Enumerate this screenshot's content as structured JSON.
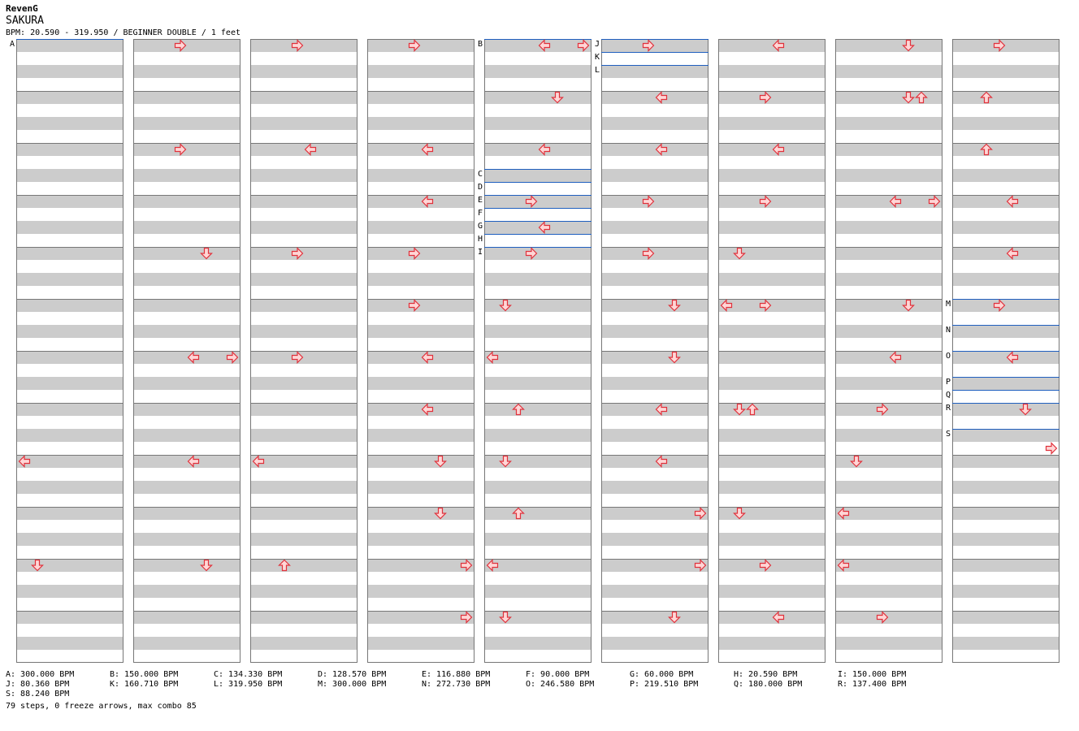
{
  "header": {
    "artist": "RevenG",
    "song": "SAKURA",
    "info": "BPM: 20.590 - 319.950 / BEGINNER DOUBLE / 1 feet"
  },
  "colors": {
    "stripe": "#cccccc",
    "bpm_line": "#1f5fbf",
    "arrow_fill": "#ffd6d6",
    "arrow_stroke": "#e0323c",
    "border": "#777777"
  },
  "chart_data": {
    "columns": 9,
    "measures_per_column": 12,
    "bpm_markers": [
      {
        "label": "A",
        "column": 0,
        "beat": 0
      },
      {
        "label": "B",
        "column": 4,
        "beat": 0
      },
      {
        "label": "C",
        "column": 4,
        "beat": 10
      },
      {
        "label": "D",
        "column": 4,
        "beat": 11
      },
      {
        "label": "E",
        "column": 4,
        "beat": 12
      },
      {
        "label": "F",
        "column": 4,
        "beat": 13
      },
      {
        "label": "G",
        "column": 4,
        "beat": 14
      },
      {
        "label": "H",
        "column": 4,
        "beat": 15
      },
      {
        "label": "I",
        "column": 4,
        "beat": 16
      },
      {
        "label": "J",
        "column": 5,
        "beat": 0
      },
      {
        "label": "K",
        "column": 5,
        "beat": 1
      },
      {
        "label": "L",
        "column": 5,
        "beat": 2
      },
      {
        "label": "M",
        "column": 8,
        "beat": 20
      },
      {
        "label": "N",
        "column": 8,
        "beat": 22
      },
      {
        "label": "O",
        "column": 8,
        "beat": 24
      },
      {
        "label": "P",
        "column": 8,
        "beat": 26
      },
      {
        "label": "Q",
        "column": 8,
        "beat": 27
      },
      {
        "label": "R",
        "column": 8,
        "beat": 28
      },
      {
        "label": "S",
        "column": 8,
        "beat": 30
      }
    ],
    "notes": [
      {
        "c": 0,
        "b": 32,
        "l": 0
      },
      {
        "c": 0,
        "b": 40,
        "l": 1
      },
      {
        "c": 1,
        "b": 0,
        "l": 3
      },
      {
        "c": 1,
        "b": 8,
        "l": 3
      },
      {
        "c": 1,
        "b": 16,
        "l": 5
      },
      {
        "c": 1,
        "b": 24,
        "l": 4
      },
      {
        "c": 1,
        "b": 24,
        "l": 7
      },
      {
        "c": 1,
        "b": 32,
        "l": 4
      },
      {
        "c": 1,
        "b": 40,
        "l": 5
      },
      {
        "c": 2,
        "b": 0,
        "l": 3
      },
      {
        "c": 2,
        "b": 8,
        "l": 4
      },
      {
        "c": 2,
        "b": 16,
        "l": 3
      },
      {
        "c": 2,
        "b": 24,
        "l": 3
      },
      {
        "c": 2,
        "b": 32,
        "l": 0
      },
      {
        "c": 2,
        "b": 40,
        "l": 2
      },
      {
        "c": 3,
        "b": 0,
        "l": 3
      },
      {
        "c": 3,
        "b": 8,
        "l": 4
      },
      {
        "c": 3,
        "b": 12,
        "l": 4
      },
      {
        "c": 3,
        "b": 16,
        "l": 3
      },
      {
        "c": 3,
        "b": 20,
        "l": 3
      },
      {
        "c": 3,
        "b": 24,
        "l": 4
      },
      {
        "c": 3,
        "b": 28,
        "l": 4
      },
      {
        "c": 3,
        "b": 32,
        "l": 5
      },
      {
        "c": 3,
        "b": 36,
        "l": 5
      },
      {
        "c": 3,
        "b": 40,
        "l": 7
      },
      {
        "c": 3,
        "b": 44,
        "l": 7
      },
      {
        "c": 4,
        "b": 0,
        "l": 4
      },
      {
        "c": 4,
        "b": 0,
        "l": 7
      },
      {
        "c": 4,
        "b": 4,
        "l": 5
      },
      {
        "c": 4,
        "b": 8,
        "l": 4
      },
      {
        "c": 4,
        "b": 12,
        "l": 3
      },
      {
        "c": 4,
        "b": 14,
        "l": 4
      },
      {
        "c": 4,
        "b": 16,
        "l": 3
      },
      {
        "c": 4,
        "b": 20,
        "l": 1
      },
      {
        "c": 4,
        "b": 24,
        "l": 0
      },
      {
        "c": 4,
        "b": 28,
        "l": 2
      },
      {
        "c": 4,
        "b": 32,
        "l": 1
      },
      {
        "c": 4,
        "b": 36,
        "l": 2
      },
      {
        "c": 4,
        "b": 40,
        "l": 0
      },
      {
        "c": 4,
        "b": 44,
        "l": 1
      },
      {
        "c": 5,
        "b": 0,
        "l": 3
      },
      {
        "c": 5,
        "b": 4,
        "l": 4
      },
      {
        "c": 5,
        "b": 8,
        "l": 4
      },
      {
        "c": 5,
        "b": 12,
        "l": 3
      },
      {
        "c": 5,
        "b": 16,
        "l": 3
      },
      {
        "c": 5,
        "b": 20,
        "l": 5
      },
      {
        "c": 5,
        "b": 24,
        "l": 5
      },
      {
        "c": 5,
        "b": 28,
        "l": 4
      },
      {
        "c": 5,
        "b": 32,
        "l": 4
      },
      {
        "c": 5,
        "b": 36,
        "l": 7
      },
      {
        "c": 5,
        "b": 40,
        "l": 7
      },
      {
        "c": 5,
        "b": 44,
        "l": 5
      },
      {
        "c": 6,
        "b": 0,
        "l": 4
      },
      {
        "c": 6,
        "b": 4,
        "l": 3
      },
      {
        "c": 6,
        "b": 8,
        "l": 4
      },
      {
        "c": 6,
        "b": 12,
        "l": 3
      },
      {
        "c": 6,
        "b": 16,
        "l": 1
      },
      {
        "c": 6,
        "b": 20,
        "l": 0
      },
      {
        "c": 6,
        "b": 20,
        "l": 3
      },
      {
        "c": 6,
        "b": 28,
        "l": 1
      },
      {
        "c": 6,
        "b": 28,
        "l": 2
      },
      {
        "c": 6,
        "b": 36,
        "l": 1
      },
      {
        "c": 6,
        "b": 40,
        "l": 3
      },
      {
        "c": 6,
        "b": 44,
        "l": 4
      },
      {
        "c": 7,
        "b": 0,
        "l": 5
      },
      {
        "c": 7,
        "b": 4,
        "l": 5
      },
      {
        "c": 7,
        "b": 4,
        "l": 6
      },
      {
        "c": 7,
        "b": 12,
        "l": 4
      },
      {
        "c": 7,
        "b": 12,
        "l": 7
      },
      {
        "c": 7,
        "b": 20,
        "l": 5
      },
      {
        "c": 7,
        "b": 24,
        "l": 4
      },
      {
        "c": 7,
        "b": 28,
        "l": 3
      },
      {
        "c": 7,
        "b": 32,
        "l": 1
      },
      {
        "c": 7,
        "b": 36,
        "l": 0
      },
      {
        "c": 7,
        "b": 40,
        "l": 0
      },
      {
        "c": 7,
        "b": 44,
        "l": 3
      },
      {
        "c": 8,
        "b": 0,
        "l": 3
      },
      {
        "c": 8,
        "b": 4,
        "l": 2
      },
      {
        "c": 8,
        "b": 8,
        "l": 2
      },
      {
        "c": 8,
        "b": 12,
        "l": 4
      },
      {
        "c": 8,
        "b": 16,
        "l": 4
      },
      {
        "c": 8,
        "b": 20,
        "l": 3
      },
      {
        "c": 8,
        "b": 24,
        "l": 4
      },
      {
        "c": 8,
        "b": 28,
        "l": 5
      },
      {
        "c": 8,
        "b": 31,
        "l": 7
      }
    ]
  },
  "legend": [
    "A: 300.000 BPM",
    "B: 150.000 BPM",
    "C: 134.330 BPM",
    "D: 128.570 BPM",
    "E: 116.880 BPM",
    "F: 90.000 BPM",
    "G: 60.000 BPM",
    "H: 20.590 BPM",
    "I: 150.000 BPM",
    "J: 80.360 BPM",
    "K: 160.710 BPM",
    "L: 319.950 BPM",
    "M: 300.000 BPM",
    "N: 272.730 BPM",
    "O: 246.580 BPM",
    "P: 219.510 BPM",
    "Q: 180.000 BPM",
    "R: 137.400 BPM",
    "S: 88.240 BPM"
  ],
  "footer": {
    "stats": "79 steps, 0 freeze arrows, max combo 85"
  }
}
